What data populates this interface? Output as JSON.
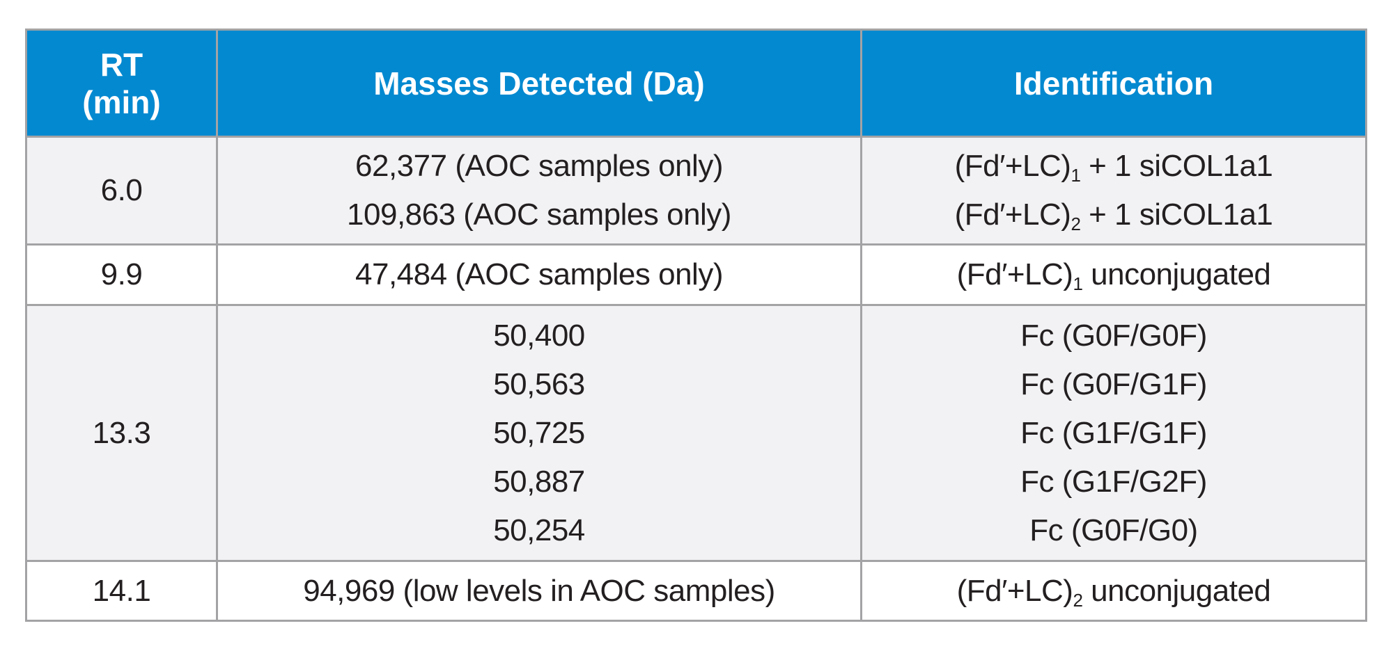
{
  "colors": {
    "header_bg": "#0389d0",
    "shaded_row": "#f2f2f4",
    "border": "#a3a3a5"
  },
  "headers": {
    "rt_line1": "RT",
    "rt_line2": "(min)",
    "masses": "Masses Detected (Da)",
    "identification": "Identification"
  },
  "rows": [
    {
      "rt": "6.0",
      "masses": [
        "62,377 (AOC samples only)",
        "109,863 (AOC samples only)"
      ],
      "identification": [
        {
          "pre": "(Fd′+LC)",
          "sub": "1",
          "post": " + 1 siCOL1a1"
        },
        {
          "pre": "(Fd′+LC)",
          "sub": "2",
          "post": " + 1 siCOL1a1"
        }
      ]
    },
    {
      "rt": "9.9",
      "masses": [
        "47,484 (AOC samples only)"
      ],
      "identification": [
        {
          "pre": "(Fd′+LC)",
          "sub": "1",
          "post": " unconjugated"
        }
      ]
    },
    {
      "rt": "13.3",
      "masses": [
        "50,400",
        "50,563",
        "50,725",
        "50,887",
        "50,254"
      ],
      "identification": [
        "Fc (G0F/G0F)",
        "Fc (G0F/G1F)",
        "Fc (G1F/G1F)",
        "Fc (G1F/G2F)",
        "Fc (G0F/G0)"
      ]
    },
    {
      "rt": "14.1",
      "masses": [
        "94,969 (low levels in AOC samples)"
      ],
      "identification": [
        {
          "pre": "(Fd′+LC)",
          "sub": "2",
          "post": " unconjugated"
        }
      ]
    }
  ]
}
